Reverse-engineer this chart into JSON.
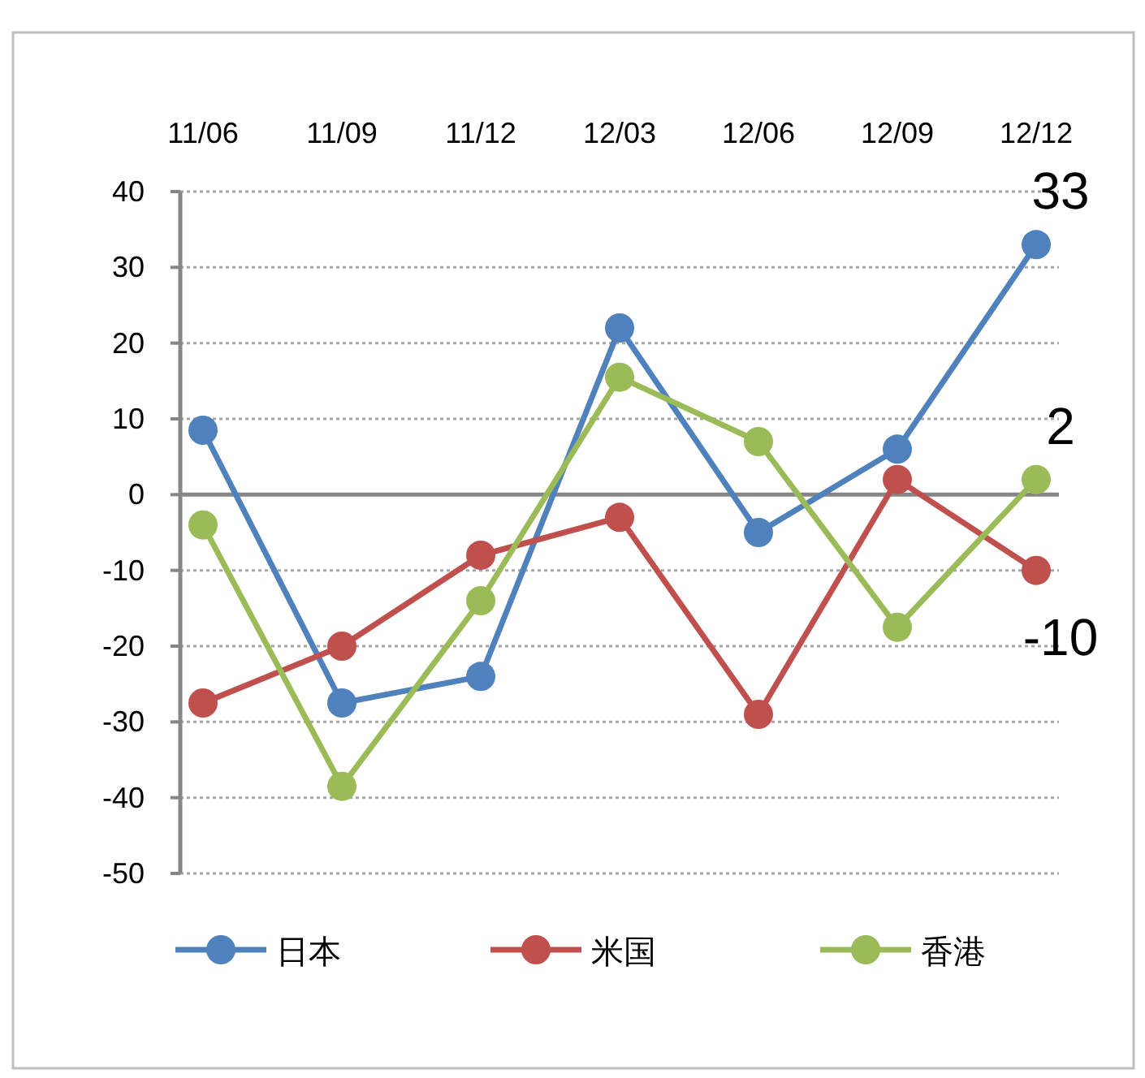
{
  "chart_data": {
    "type": "line",
    "categories": [
      "11/06",
      "11/09",
      "11/12",
      "12/03",
      "12/06",
      "12/09",
      "12/12"
    ],
    "series": [
      {
        "name": "日本",
        "color": "#4f81bd",
        "values": [
          8.5,
          -27.5,
          -24,
          22,
          -5,
          6,
          33
        ],
        "value_labels": [
          null,
          null,
          null,
          null,
          null,
          null,
          "33"
        ]
      },
      {
        "name": "米国",
        "color": "#c0504d",
        "values": [
          -27.5,
          -20,
          -8,
          -3,
          -29,
          2,
          -10
        ],
        "value_labels": [
          null,
          null,
          null,
          null,
          null,
          null,
          "-10"
        ]
      },
      {
        "name": "香港",
        "color": "#9bbb59",
        "values": [
          -4,
          -38.5,
          -14,
          15.5,
          7,
          -17.5,
          2
        ],
        "value_labels": [
          null,
          null,
          null,
          null,
          null,
          null,
          "2"
        ]
      }
    ],
    "ylim": [
      -50,
      40
    ],
    "yticks": [
      -50,
      -40,
      -30,
      -20,
      -10,
      0,
      10,
      20,
      30,
      40
    ],
    "grid": "y",
    "legend": "bottom",
    "marker": "circle"
  }
}
